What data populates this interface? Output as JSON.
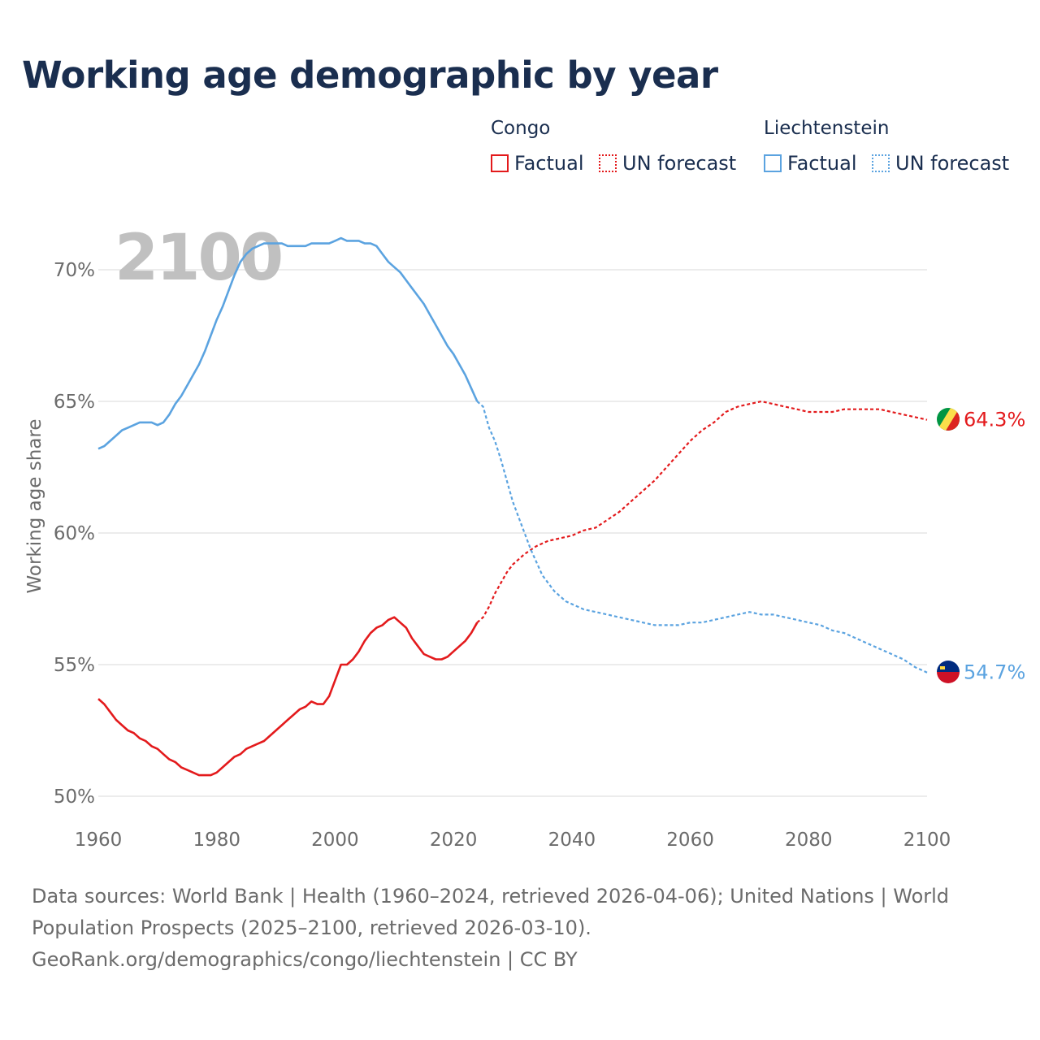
{
  "title": "Working age demographic by year",
  "legend": {
    "groups": [
      {
        "name": "Congo",
        "factual": "Factual",
        "forecast": "UN forecast"
      },
      {
        "name": "Liechtenstein",
        "factual": "Factual",
        "forecast": "UN forecast"
      }
    ]
  },
  "colors": {
    "congo": "#e31a1c",
    "liechtenstein": "#5ba3e0",
    "title": "#1a2e4f",
    "grid": "#e5e5e5",
    "year_watermark": "#c0c0c0"
  },
  "footer": {
    "line1": "Data sources: World Bank | Health (1960–2024, retrieved 2026-04-06); United Nations | World",
    "line2": "Population Prospects (2025–2100, retrieved 2026-03-10).",
    "line3": "GeoRank.org/demographics/congo/liechtenstein | CC BY"
  },
  "chart_data": {
    "type": "line",
    "title": "Working age demographic by year",
    "ylabel": "Working age share",
    "xlabel": "",
    "xlim": [
      1960,
      2100
    ],
    "ylim": [
      50,
      72
    ],
    "x_ticks": [
      1960,
      1980,
      2000,
      2020,
      2040,
      2060,
      2080,
      2100
    ],
    "x_tick_labels": [
      "1960",
      "1980",
      "2000",
      "2020",
      "2040",
      "2060",
      "2080",
      "2100"
    ],
    "y_ticks": [
      50,
      55,
      60,
      65,
      70
    ],
    "y_tick_labels": [
      "50%",
      "55%",
      "60%",
      "65%",
      "70%"
    ],
    "year_watermark": "2100",
    "factual_end_year": 2024,
    "forecast_start_year": 2025,
    "series": [
      {
        "name": "Congo",
        "color": "#e31a1c",
        "end_label": "64.3%",
        "flag": "congo",
        "points": [
          [
            1960,
            53.7
          ],
          [
            1961,
            53.5
          ],
          [
            1962,
            53.2
          ],
          [
            1963,
            52.9
          ],
          [
            1964,
            52.7
          ],
          [
            1965,
            52.5
          ],
          [
            1966,
            52.4
          ],
          [
            1967,
            52.2
          ],
          [
            1968,
            52.1
          ],
          [
            1969,
            51.9
          ],
          [
            1970,
            51.8
          ],
          [
            1971,
            51.6
          ],
          [
            1972,
            51.4
          ],
          [
            1973,
            51.3
          ],
          [
            1974,
            51.1
          ],
          [
            1975,
            51.0
          ],
          [
            1976,
            50.9
          ],
          [
            1977,
            50.8
          ],
          [
            1978,
            50.8
          ],
          [
            1979,
            50.8
          ],
          [
            1980,
            50.9
          ],
          [
            1981,
            51.1
          ],
          [
            1982,
            51.3
          ],
          [
            1983,
            51.5
          ],
          [
            1984,
            51.6
          ],
          [
            1985,
            51.8
          ],
          [
            1986,
            51.9
          ],
          [
            1987,
            52.0
          ],
          [
            1988,
            52.1
          ],
          [
            1989,
            52.3
          ],
          [
            1990,
            52.5
          ],
          [
            1991,
            52.7
          ],
          [
            1992,
            52.9
          ],
          [
            1993,
            53.1
          ],
          [
            1994,
            53.3
          ],
          [
            1995,
            53.4
          ],
          [
            1996,
            53.6
          ],
          [
            1997,
            53.5
          ],
          [
            1998,
            53.5
          ],
          [
            1999,
            53.8
          ],
          [
            2000,
            54.4
          ],
          [
            2001,
            55.0
          ],
          [
            2002,
            55.0
          ],
          [
            2003,
            55.2
          ],
          [
            2004,
            55.5
          ],
          [
            2005,
            55.9
          ],
          [
            2006,
            56.2
          ],
          [
            2007,
            56.4
          ],
          [
            2008,
            56.5
          ],
          [
            2009,
            56.7
          ],
          [
            2010,
            56.8
          ],
          [
            2011,
            56.6
          ],
          [
            2012,
            56.4
          ],
          [
            2013,
            56.0
          ],
          [
            2014,
            55.7
          ],
          [
            2015,
            55.4
          ],
          [
            2016,
            55.3
          ],
          [
            2017,
            55.2
          ],
          [
            2018,
            55.2
          ],
          [
            2019,
            55.3
          ],
          [
            2020,
            55.5
          ],
          [
            2021,
            55.7
          ],
          [
            2022,
            55.9
          ],
          [
            2023,
            56.2
          ],
          [
            2024,
            56.6
          ],
          [
            2025,
            56.8
          ],
          [
            2026,
            57.2
          ],
          [
            2027,
            57.7
          ],
          [
            2028,
            58.1
          ],
          [
            2029,
            58.5
          ],
          [
            2030,
            58.8
          ],
          [
            2032,
            59.2
          ],
          [
            2034,
            59.5
          ],
          [
            2036,
            59.7
          ],
          [
            2038,
            59.8
          ],
          [
            2040,
            59.9
          ],
          [
            2042,
            60.1
          ],
          [
            2044,
            60.2
          ],
          [
            2046,
            60.5
          ],
          [
            2048,
            60.8
          ],
          [
            2050,
            61.2
          ],
          [
            2052,
            61.6
          ],
          [
            2054,
            62.0
          ],
          [
            2056,
            62.5
          ],
          [
            2058,
            63.0
          ],
          [
            2060,
            63.5
          ],
          [
            2062,
            63.9
          ],
          [
            2064,
            64.2
          ],
          [
            2066,
            64.6
          ],
          [
            2068,
            64.8
          ],
          [
            2070,
            64.9
          ],
          [
            2072,
            65.0
          ],
          [
            2074,
            64.9
          ],
          [
            2076,
            64.8
          ],
          [
            2078,
            64.7
          ],
          [
            2080,
            64.6
          ],
          [
            2082,
            64.6
          ],
          [
            2084,
            64.6
          ],
          [
            2086,
            64.7
          ],
          [
            2088,
            64.7
          ],
          [
            2090,
            64.7
          ],
          [
            2092,
            64.7
          ],
          [
            2094,
            64.6
          ],
          [
            2096,
            64.5
          ],
          [
            2098,
            64.4
          ],
          [
            2100,
            64.3
          ]
        ]
      },
      {
        "name": "Liechtenstein",
        "color": "#5ba3e0",
        "end_label": "54.7%",
        "flag": "liechtenstein",
        "points": [
          [
            1960,
            63.2
          ],
          [
            1961,
            63.3
          ],
          [
            1962,
            63.5
          ],
          [
            1963,
            63.7
          ],
          [
            1964,
            63.9
          ],
          [
            1965,
            64.0
          ],
          [
            1966,
            64.1
          ],
          [
            1967,
            64.2
          ],
          [
            1968,
            64.2
          ],
          [
            1969,
            64.2
          ],
          [
            1970,
            64.1
          ],
          [
            1971,
            64.2
          ],
          [
            1972,
            64.5
          ],
          [
            1973,
            64.9
          ],
          [
            1974,
            65.2
          ],
          [
            1975,
            65.6
          ],
          [
            1976,
            66.0
          ],
          [
            1977,
            66.4
          ],
          [
            1978,
            66.9
          ],
          [
            1979,
            67.5
          ],
          [
            1980,
            68.1
          ],
          [
            1981,
            68.6
          ],
          [
            1982,
            69.2
          ],
          [
            1983,
            69.8
          ],
          [
            1984,
            70.3
          ],
          [
            1985,
            70.6
          ],
          [
            1986,
            70.8
          ],
          [
            1987,
            70.9
          ],
          [
            1988,
            71.0
          ],
          [
            1989,
            71.0
          ],
          [
            1990,
            71.0
          ],
          [
            1991,
            71.0
          ],
          [
            1992,
            70.9
          ],
          [
            1993,
            70.9
          ],
          [
            1994,
            70.9
          ],
          [
            1995,
            70.9
          ],
          [
            1996,
            71.0
          ],
          [
            1997,
            71.0
          ],
          [
            1998,
            71.0
          ],
          [
            1999,
            71.0
          ],
          [
            2000,
            71.1
          ],
          [
            2001,
            71.2
          ],
          [
            2002,
            71.1
          ],
          [
            2003,
            71.1
          ],
          [
            2004,
            71.1
          ],
          [
            2005,
            71.0
          ],
          [
            2006,
            71.0
          ],
          [
            2007,
            70.9
          ],
          [
            2008,
            70.6
          ],
          [
            2009,
            70.3
          ],
          [
            2010,
            70.1
          ],
          [
            2011,
            69.9
          ],
          [
            2012,
            69.6
          ],
          [
            2013,
            69.3
          ],
          [
            2014,
            69.0
          ],
          [
            2015,
            68.7
          ],
          [
            2016,
            68.3
          ],
          [
            2017,
            67.9
          ],
          [
            2018,
            67.5
          ],
          [
            2019,
            67.1
          ],
          [
            2020,
            66.8
          ],
          [
            2021,
            66.4
          ],
          [
            2022,
            66.0
          ],
          [
            2023,
            65.5
          ],
          [
            2024,
            65.0
          ],
          [
            2025,
            64.8
          ],
          [
            2026,
            64.0
          ],
          [
            2027,
            63.5
          ],
          [
            2028,
            62.8
          ],
          [
            2029,
            62.0
          ],
          [
            2030,
            61.2
          ],
          [
            2031,
            60.6
          ],
          [
            2032,
            60.0
          ],
          [
            2033,
            59.4
          ],
          [
            2034,
            58.9
          ],
          [
            2035,
            58.4
          ],
          [
            2036,
            58.1
          ],
          [
            2037,
            57.8
          ],
          [
            2038,
            57.6
          ],
          [
            2039,
            57.4
          ],
          [
            2040,
            57.3
          ],
          [
            2042,
            57.1
          ],
          [
            2044,
            57.0
          ],
          [
            2046,
            56.9
          ],
          [
            2048,
            56.8
          ],
          [
            2050,
            56.7
          ],
          [
            2052,
            56.6
          ],
          [
            2054,
            56.5
          ],
          [
            2056,
            56.5
          ],
          [
            2058,
            56.5
          ],
          [
            2060,
            56.6
          ],
          [
            2062,
            56.6
          ],
          [
            2064,
            56.7
          ],
          [
            2066,
            56.8
          ],
          [
            2068,
            56.9
          ],
          [
            2070,
            57.0
          ],
          [
            2072,
            56.9
          ],
          [
            2074,
            56.9
          ],
          [
            2076,
            56.8
          ],
          [
            2078,
            56.7
          ],
          [
            2080,
            56.6
          ],
          [
            2082,
            56.5
          ],
          [
            2084,
            56.3
          ],
          [
            2086,
            56.2
          ],
          [
            2088,
            56.0
          ],
          [
            2090,
            55.8
          ],
          [
            2092,
            55.6
          ],
          [
            2094,
            55.4
          ],
          [
            2096,
            55.2
          ],
          [
            2098,
            54.9
          ],
          [
            2100,
            54.7
          ]
        ]
      }
    ]
  }
}
